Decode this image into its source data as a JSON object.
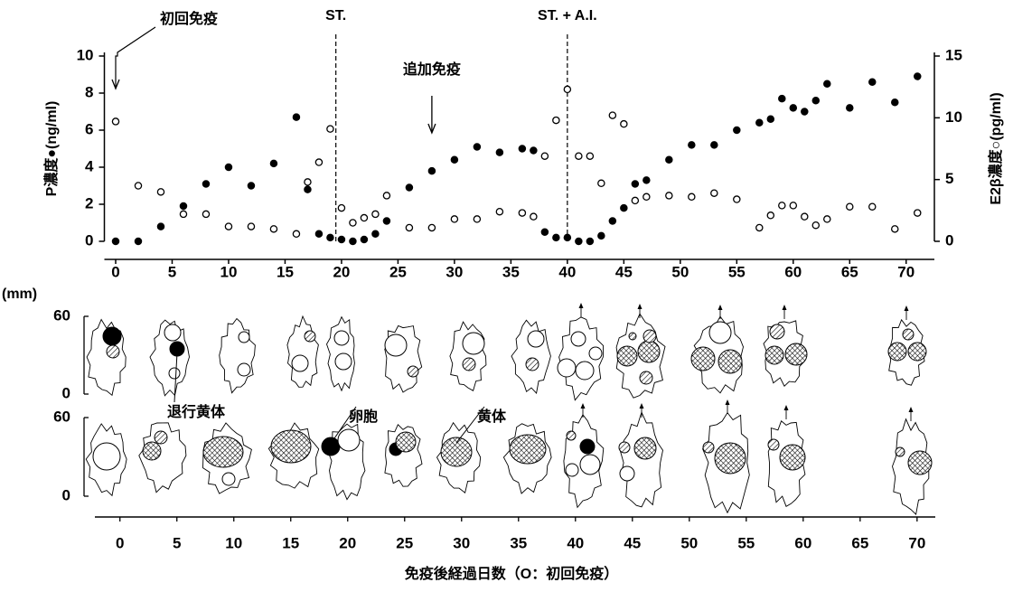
{
  "chart_data": [
    {
      "type": "scatter",
      "y_label": "P濃度●(ng/ml)",
      "y2_label": "E2β濃度○(pg/ml)",
      "xlim": [
        -1,
        72.5
      ],
      "xticks": [
        0,
        5,
        10,
        15,
        20,
        25,
        30,
        35,
        40,
        45,
        50,
        55,
        60,
        65,
        70
      ],
      "ylim": [
        0,
        10
      ],
      "yticks": [
        0,
        2,
        4,
        6,
        8,
        10
      ],
      "y2lim": [
        0,
        15
      ],
      "y2ticks": [
        0,
        5,
        10,
        15
      ],
      "series": [
        {
          "marker": "filled",
          "color": "#000000",
          "x": [
            0,
            2,
            4,
            6,
            8,
            10,
            12,
            14,
            16,
            17,
            18,
            19,
            20,
            21,
            22,
            23,
            24,
            26,
            28,
            30,
            32,
            34,
            36,
            37,
            38,
            39,
            40,
            41,
            42,
            43,
            44,
            45,
            46,
            47,
            49,
            51,
            53,
            55,
            57,
            58,
            59,
            60,
            61,
            62,
            63,
            65,
            67,
            69,
            71
          ],
          "values": [
            0,
            0,
            0.8,
            1.9,
            3.1,
            4.0,
            3.0,
            4.2,
            6.7,
            2.8,
            0.4,
            0.2,
            0.1,
            0,
            0.1,
            0.4,
            1.1,
            2.9,
            3.8,
            4.4,
            5.1,
            4.8,
            5.0,
            4.9,
            0.5,
            0.2,
            0.2,
            0,
            0,
            0.3,
            1.1,
            1.8,
            3.1,
            3.3,
            4.4,
            5.2,
            5.2,
            6.0,
            6.4,
            6.6,
            7.7,
            7.2,
            7.0,
            7.6,
            8.5,
            7.2,
            8.6,
            7.5,
            8.9
          ]
        },
        {
          "marker": "open",
          "color": "#000000",
          "axis": "y2",
          "x": [
            0,
            2,
            4,
            6,
            8,
            10,
            12,
            14,
            16,
            17,
            18,
            19,
            20,
            21,
            22,
            23,
            24,
            26,
            28,
            30,
            32,
            34,
            36,
            37,
            38,
            39,
            40,
            41,
            42,
            43,
            44,
            45,
            46,
            47,
            49,
            51,
            53,
            55,
            57,
            58,
            59,
            60,
            61,
            62,
            63,
            65,
            67,
            69,
            71
          ],
          "values": [
            9.7,
            4.5,
            4.0,
            2.2,
            2.2,
            1.2,
            1.2,
            1.0,
            0.6,
            4.8,
            6.4,
            9.1,
            2.7,
            1.5,
            1.9,
            2.2,
            3.7,
            1.1,
            1.1,
            1.8,
            1.8,
            2.4,
            2.3,
            2.0,
            6.9,
            9.8,
            12.3,
            6.9,
            6.9,
            4.7,
            10.2,
            9.5,
            3.3,
            3.6,
            3.7,
            3.6,
            3.9,
            3.4,
            1.1,
            2.1,
            2.9,
            2.9,
            2.0,
            1.3,
            1.8,
            2.8,
            2.8,
            1.0,
            2.3
          ]
        }
      ],
      "vlines": [
        {
          "x": 19.5,
          "label": "ST."
        },
        {
          "x": 40,
          "label": "ST. + A.I."
        }
      ],
      "annotations": [
        {
          "text": "初回免疫",
          "x": 0
        },
        {
          "text": "追加免疫",
          "x": 28
        }
      ]
    },
    {
      "type": "ovary-sketch",
      "y_label": "(mm)",
      "ylim": [
        0,
        60
      ],
      "yticks": [
        0,
        60
      ],
      "xlim": [
        -2.2,
        71.6
      ],
      "xticks": [
        0,
        5,
        10,
        15,
        20,
        25,
        30,
        35,
        40,
        45,
        50,
        55,
        60,
        65,
        70
      ],
      "x_label": "免疫後経過日数（O：初回免疫）",
      "labels": [
        "退行黄体",
        "卵胞",
        "黄体"
      ]
    }
  ]
}
